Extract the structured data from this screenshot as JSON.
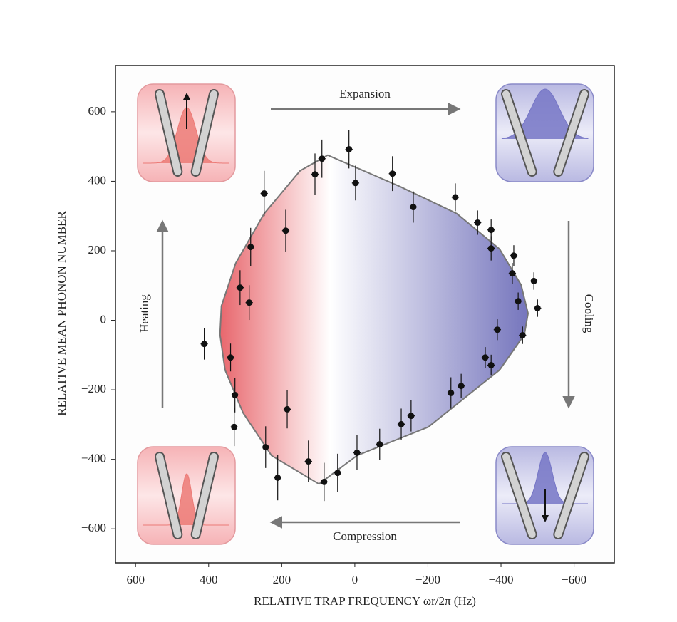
{
  "chart_data": {
    "type": "scatter",
    "x_label": "RELATIVE TRAP FREQUENCY ωr/2π (Hz)",
    "y_label": "RELATIVE MEAN PHONON NUMBER",
    "annotations": [
      "Expansion",
      "Cooling",
      "Compression",
      "Heating"
    ],
    "xlim": [
      655,
      -710
    ],
    "ylim": [
      -698,
      733
    ],
    "xticks": [
      600,
      400,
      200,
      0,
      {
        "value": -200,
        "label": "−200"
      },
      {
        "value": -400,
        "label": "−400"
      },
      {
        "value": -600,
        "label": "−600"
      }
    ],
    "yticks": [
      {
        "value": -600,
        "label": "−600"
      },
      {
        "value": -400,
        "label": "−400"
      },
      {
        "value": -200,
        "label": "−200"
      },
      0,
      200,
      400,
      600
    ],
    "color": "#111111",
    "x": [
      412,
      340,
      328,
      330,
      244,
      211,
      185,
      127,
      84,
      47,
      -6,
      -68,
      -127,
      -154,
      -263,
      -291,
      -357,
      -373,
      -390,
      -459,
      -447,
      -500,
      -490,
      -431,
      -435,
      -373,
      -373,
      -336,
      -275,
      -160,
      -103,
      -2,
      16,
      90,
      109,
      189,
      248,
      285,
      314,
      289
    ],
    "values": [
      -68,
      -107,
      -215,
      -307,
      -365,
      -453,
      -256,
      -406,
      -465,
      -439,
      -381,
      -357,
      -299,
      -275,
      -209,
      -189,
      -107,
      -129,
      -27,
      -43,
      55,
      35,
      113,
      135,
      186,
      207,
      260,
      281,
      354,
      326,
      422,
      395,
      492,
      465,
      420,
      258,
      365,
      211,
      94,
      51
    ],
    "yerr": [
      45,
      40,
      50,
      55,
      60,
      65,
      55,
      60,
      55,
      55,
      50,
      45,
      45,
      45,
      45,
      35,
      30,
      30,
      30,
      25,
      25,
      25,
      25,
      30,
      30,
      35,
      30,
      35,
      40,
      45,
      50,
      50,
      55,
      55,
      60,
      60,
      65,
      55,
      50,
      50
    ],
    "xerr": [
      10,
      10,
      10,
      10,
      10,
      10,
      10,
      10,
      10,
      10,
      10,
      10,
      10,
      10,
      10,
      10,
      10,
      10,
      10,
      10,
      10,
      10,
      10,
      10,
      10,
      10,
      10,
      10,
      10,
      10,
      10,
      10,
      10,
      10,
      10,
      10,
      10,
      10,
      10,
      10
    ],
    "curve": {
      "x": [
        74,
        -123,
        -279,
        -396,
        -455,
        -474,
        -464,
        -396,
        -201,
        -6,
        98,
        228,
        306,
        355,
        369,
        365,
        326,
        248,
        150
      ],
      "y": [
        475,
        385,
        307,
        205,
        102,
        20,
        -41,
        -143,
        -307,
        -389,
        -471,
        -389,
        -266,
        -143,
        -41,
        41,
        164,
        307,
        430
      ]
    }
  }
}
